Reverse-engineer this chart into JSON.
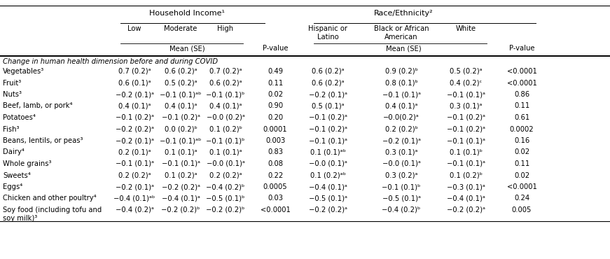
{
  "header_group1": "Household Income¹",
  "header_group2": "Race/Ethnicity²",
  "rows": [
    {
      "food": "Vegetables³",
      "income": [
        "0.7 (0.2)ᵃ",
        "0.6 (0.2)ᵃ",
        "0.7 (0.2)ᵃ"
      ],
      "income_pval": "0.49",
      "race": [
        "0.6 (0.2)ᵃ",
        "0.9 (0.2)ᵇ",
        "0.5 (0.2)ᵃ"
      ],
      "race_pval": "<0.0001"
    },
    {
      "food": "Fruit³",
      "income": [
        "0.6 (0.1)ᵃ",
        "0.5 (0.2)ᵃ",
        "0.6 (0.2)ᵃ"
      ],
      "income_pval": "0.11",
      "race": [
        "0.6 (0.2)ᵃ",
        "0.8 (0.1)ᵇ",
        "0.4 (0.2)ᶜ"
      ],
      "race_pval": "<0.0001"
    },
    {
      "food": "Nuts³",
      "income": [
        "−0.2 (0.1)ᵃ",
        "−0.1 (0.1)ᵃᵇ",
        "−0.1 (0.1)ᵇ"
      ],
      "income_pval": "0.02",
      "race": [
        "−0.2 (0.1)ᵃ",
        "−0.1 (0.1)ᵃ",
        "−0.1 (0.1)ᵃ"
      ],
      "race_pval": "0.86"
    },
    {
      "food": "Beef, lamb, or pork⁴",
      "income": [
        "0.4 (0.1)ᵃ",
        "0.4 (0.1)ᵃ",
        "0.4 (0.1)ᵃ"
      ],
      "income_pval": "0.90",
      "race": [
        "0.5 (0.1)ᵃ",
        "0.4 (0.1)ᵃ",
        "0.3 (0.1)ᵃ"
      ],
      "race_pval": "0.11"
    },
    {
      "food": "Potatoes⁴",
      "income": [
        "−0.1 (0.2)ᵃ",
        "−0.1 (0.2)ᵃ",
        "−0.0 (0.2)ᵃ"
      ],
      "income_pval": "0.20",
      "race": [
        "−0.1 (0.2)ᵃ",
        "−0.0(0.2)ᵃ",
        "−0.1 (0.2)ᵃ"
      ],
      "race_pval": "0.61"
    },
    {
      "food": "Fish³",
      "income": [
        "−0.2 (0.2)ᵃ",
        "0.0 (0.2)ᵇ",
        "0.1 (0.2)ᵇ"
      ],
      "income_pval": "0.0001",
      "race": [
        "−0.1 (0.2)ᵃ",
        "0.2 (0.2)ᵇ",
        "−0.1 (0.2)ᵃ"
      ],
      "race_pval": "0.0002"
    },
    {
      "food": "Beans, lentils, or peas³",
      "income": [
        "−0.2 (0.1)ᵃ",
        "−0.1 (0.1)ᵃᵇ",
        "−0.1 (0.1)ᵇ"
      ],
      "income_pval": "0.003",
      "race": [
        "−0.1 (0.1)ᵃ",
        "−0.2 (0.1)ᵃ",
        "−0.1 (0.1)ᵃ"
      ],
      "race_pval": "0.16"
    },
    {
      "food": "Dairy⁴",
      "income": [
        "0.2 (0.1)ᵃ",
        "0.1 (0.1)ᵃ",
        "0.1 (0.1)ᵃ"
      ],
      "income_pval": "0.83",
      "race": [
        "0.1 (0.1)ᵃᵇ",
        "0.3 (0.1)ᵃ",
        "0.1 (0.1)ᵇ"
      ],
      "race_pval": "0.02"
    },
    {
      "food": "Whole grains³",
      "income": [
        "−0.1 (0.1)ᵃ",
        "−0.1 (0.1)ᵃ",
        "−0.0 (0.1)ᵃ"
      ],
      "income_pval": "0.08",
      "race": [
        "−0.0 (0.1)ᵃ",
        "−0.0 (0.1)ᵃ",
        "−0.1 (0.1)ᵃ"
      ],
      "race_pval": "0.11"
    },
    {
      "food": "Sweets⁴",
      "income": [
        "0.2 (0.2)ᵃ",
        "0.1 (0.2)ᵃ",
        "0.2 (0.2)ᵃ"
      ],
      "income_pval": "0.22",
      "race": [
        "0.1 (0.2)ᵃᵇ",
        "0.3 (0.2)ᵃ",
        "0.1 (0.2)ᵇ"
      ],
      "race_pval": "0.02"
    },
    {
      "food": "Eggs⁴",
      "income": [
        "−0.2 (0.1)ᵃ",
        "−0.2 (0.2)ᵃ",
        "−0.4 (0.2)ᵇ"
      ],
      "income_pval": "0.0005",
      "race": [
        "−0.4 (0.1)ᵃ",
        "−0.1 (0.1)ᵇ",
        "−0.3 (0.1)ᵃ"
      ],
      "race_pval": "<0.0001"
    },
    {
      "food": "Chicken and other poultry⁴",
      "income": [
        "−0.4 (0.1)ᵃᵇ",
        "−0.4 (0.1)ᵃ",
        "−0.5 (0.1)ᵇ"
      ],
      "income_pval": "0.03",
      "race": [
        "−0.5 (0.1)ᵃ",
        "−0.5 (0.1)ᵃ",
        "−0.4 (0.1)ᵃ"
      ],
      "race_pval": "0.24"
    },
    {
      "food": "Soy food (including tofu and\nsoy milk)³",
      "income": [
        "−0.4 (0.2)ᵃ",
        "−0.2 (0.2)ᵇ",
        "−0.2 (0.2)ᵇ"
      ],
      "income_pval": "<0.0001",
      "race": [
        "−0.2 (0.2)ᵃ",
        "−0.4 (0.2)ᵇ",
        "−0.2 (0.2)ᵃ"
      ],
      "race_pval": "0.005"
    }
  ],
  "section_header": "Change in human health dimension before and during COVID",
  "bg_color": "white",
  "text_color": "black",
  "line_color": "black",
  "font_size": 7.2,
  "header_font_size": 8.0
}
